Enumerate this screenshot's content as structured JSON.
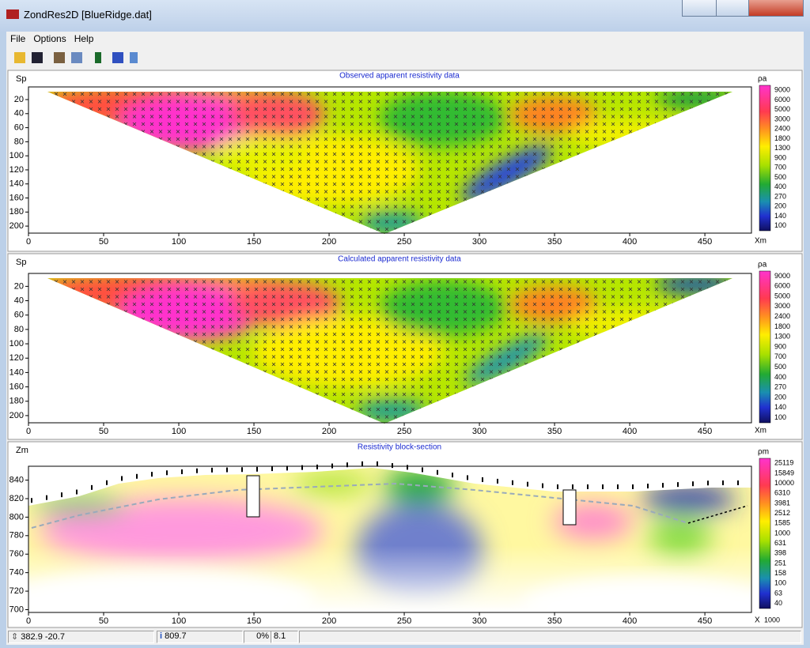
{
  "window": {
    "title": "ZondRes2D [BlueRidge.dat]"
  },
  "menu": [
    "File",
    "Options",
    "Help"
  ],
  "panels": [
    {
      "title": "Observed apparent resistivity data",
      "y_label": "Sp",
      "x_label": "Xm",
      "colorbar_label": "ρa",
      "xlim": [
        0,
        481
      ],
      "xticks": [
        0,
        50,
        100,
        150,
        200,
        250,
        300,
        350,
        400,
        450
      ],
      "ylim": [
        2,
        210
      ],
      "yticks": [
        20,
        40,
        60,
        80,
        100,
        120,
        140,
        160,
        180,
        200
      ],
      "colorbar_ticks": [
        9000,
        6000,
        5000,
        3000,
        2400,
        1800,
        1300,
        900,
        700,
        500,
        400,
        270,
        200,
        140,
        100
      ]
    },
    {
      "title": "Calculated apparent resistivity data",
      "y_label": "Sp",
      "x_label": "Xm",
      "colorbar_label": "ρa",
      "xlim": [
        0,
        481
      ],
      "xticks": [
        0,
        50,
        100,
        150,
        200,
        250,
        300,
        350,
        400,
        450
      ],
      "ylim": [
        2,
        210
      ],
      "yticks": [
        20,
        40,
        60,
        80,
        100,
        120,
        140,
        160,
        180,
        200
      ],
      "colorbar_ticks": [
        9000,
        6000,
        5000,
        3000,
        2400,
        1800,
        1300,
        900,
        700,
        500,
        400,
        270,
        200,
        140,
        100
      ]
    },
    {
      "title": "Resistivity block-section",
      "y_label": "Zm",
      "x_label": "X",
      "x_note": "1000",
      "colorbar_label": "ρm",
      "xlim": [
        0,
        481
      ],
      "xticks": [
        0,
        50,
        100,
        150,
        200,
        250,
        300,
        350,
        400,
        450
      ],
      "ylim": [
        855,
        697
      ],
      "yticks": [
        840,
        820,
        800,
        780,
        760,
        740,
        720,
        700
      ],
      "colorbar_ticks": [
        25119,
        15849,
        10000,
        6310,
        3981,
        2512,
        1585,
        1000,
        631,
        398,
        251,
        158,
        100,
        63,
        40
      ]
    }
  ],
  "status": {
    "coords": "382.9 -20.7",
    "value": "809.7",
    "progress": "0%",
    "extra": "8.1"
  }
}
